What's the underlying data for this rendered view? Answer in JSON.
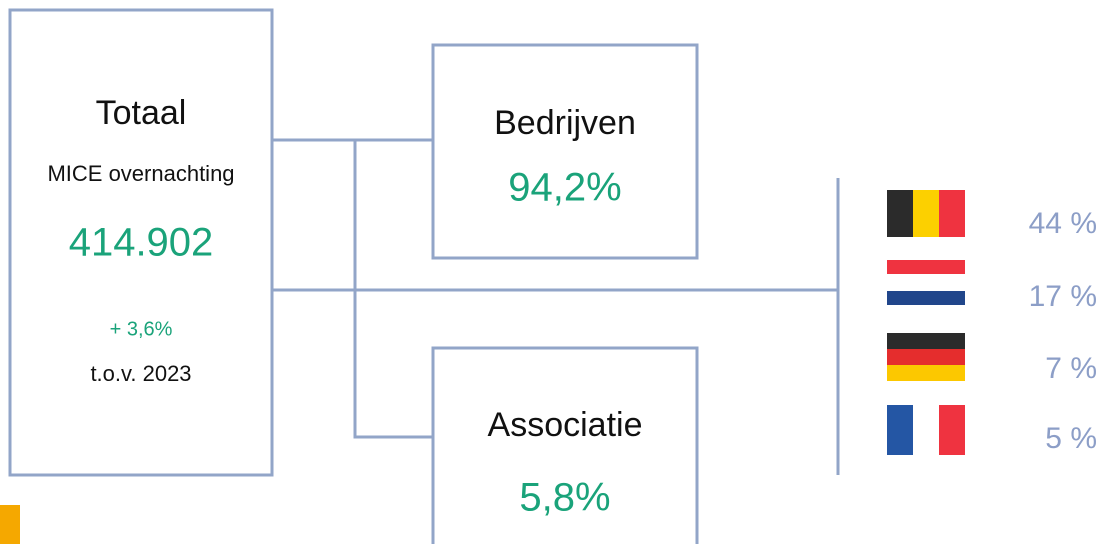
{
  "total": {
    "title": "Totaal",
    "subtitle": "MICE overnachting",
    "value": "414.902",
    "change": "+ 3,6%",
    "comparison": "t.o.v. 2023"
  },
  "segments": [
    {
      "label": "Bedrijven",
      "value": "94,2%"
    },
    {
      "label": "Associatie",
      "value": "5,8%"
    }
  ],
  "countries": [
    "44 %",
    "17 %",
    "7 %",
    "5 %"
  ]
}
